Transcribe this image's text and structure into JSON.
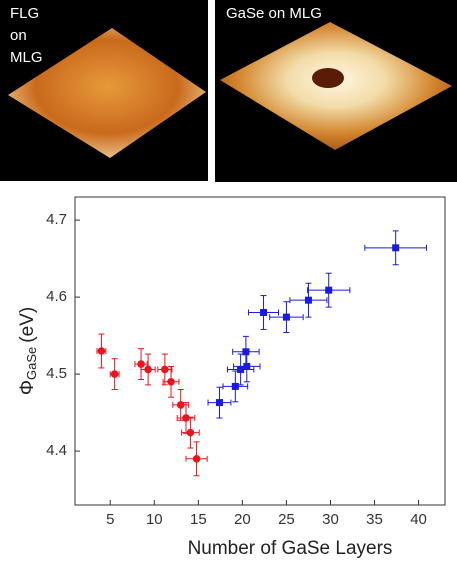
{
  "panels": [
    {
      "label_lines": [
        "FLG",
        "on",
        "MLG"
      ]
    },
    {
      "label": "GaSe on MLG"
    }
  ],
  "chart_data": {
    "type": "scatter",
    "xlabel": "Number of GaSe Layers",
    "ylabel": "Φ",
    "ylabel_sub": "GaSe",
    "ylabel_unit": "(eV)",
    "xlim": [
      1,
      43
    ],
    "ylim": [
      4.33,
      4.73
    ],
    "xticks": [
      5,
      10,
      15,
      20,
      25,
      30,
      35,
      40
    ],
    "yticks": [
      4.4,
      4.5,
      4.6,
      4.7
    ],
    "series": [
      {
        "color": "#e8141e",
        "marker": "circle",
        "x": [
          4,
          5.5,
          8.5,
          9.3,
          11.2,
          11.9,
          13,
          13.6,
          14.1,
          14.8
        ],
        "values": [
          4.53,
          4.5,
          4.513,
          4.506,
          4.506,
          4.49,
          4.46,
          4.443,
          4.424,
          4.39
        ],
        "xerr": [
          0.5,
          0.5,
          0.7,
          0.8,
          0.8,
          0.9,
          0.9,
          1,
          1,
          1.2
        ],
        "yerr": [
          0.022,
          0.02,
          0.02,
          0.02,
          0.02,
          0.02,
          0.02,
          0.02,
          0.02,
          0.022
        ]
      },
      {
        "color": "#1a1ae0",
        "marker": "square",
        "x": [
          17.4,
          19.2,
          19.8,
          20.5,
          20.4,
          22.4,
          25,
          27.5,
          29.8,
          37.4
        ],
        "values": [
          4.463,
          4.484,
          4.506,
          4.51,
          4.529,
          4.58,
          4.574,
          4.596,
          4.609,
          4.664
        ],
        "xerr": [
          1.3,
          1.4,
          1.5,
          1.5,
          1.5,
          1.7,
          1.9,
          2.1,
          2.4,
          3.5
        ],
        "yerr": [
          0.02,
          0.02,
          0.02,
          0.02,
          0.02,
          0.022,
          0.02,
          0.022,
          0.022,
          0.022
        ]
      }
    ]
  }
}
